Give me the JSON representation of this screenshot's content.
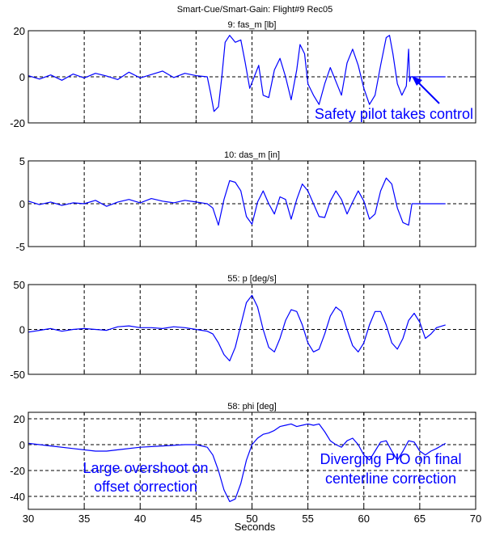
{
  "figure": {
    "suptitle": "Smart-Cue/Smart-Gain: Flight#9 Rec05",
    "xlabel": "Seconds"
  },
  "chart_data": [
    {
      "type": "line",
      "title": "9: fas_m [lb]",
      "xlim": [
        30,
        70
      ],
      "ylim": [
        -20,
        20
      ],
      "yticks": [
        -20,
        0,
        20
      ],
      "xticks": [
        30,
        35,
        40,
        45,
        50,
        55,
        60,
        65,
        70
      ],
      "show_xticklabels": false,
      "grid": true,
      "series_color": "#0000ff",
      "series": [
        {
          "x": [
            30,
            31,
            32,
            33,
            34,
            35,
            36,
            37,
            38,
            39,
            40,
            41,
            42,
            43,
            44,
            45,
            46,
            46.3,
            46.6,
            47,
            47.3,
            47.6,
            48,
            48.5,
            49,
            49.4,
            49.8,
            50.2,
            50.6,
            51,
            51.5,
            52,
            52.5,
            53,
            53.5,
            54,
            54.3,
            54.7,
            55,
            55.5,
            56,
            56.5,
            57,
            57.5,
            58,
            58.5,
            59,
            59.5,
            60,
            60.5,
            61,
            61.5,
            62,
            62.3,
            62.6,
            63,
            63.4,
            63.8,
            64,
            64.1,
            64.2,
            64.5,
            65,
            66,
            67.3
          ],
          "y": [
            0.5,
            -1,
            0.8,
            -1.5,
            1.2,
            -0.5,
            1.5,
            0.3,
            -1.2,
            2,
            -0.5,
            1,
            2.5,
            -0.3,
            1.5,
            0.5,
            0,
            -7,
            -15,
            -13,
            0,
            15,
            18,
            15,
            16,
            6,
            -5,
            0,
            5,
            -8,
            -9,
            3,
            8,
            0,
            -10,
            3,
            14,
            10,
            -3,
            -8,
            -12,
            -3,
            4,
            -2,
            -8,
            6,
            12,
            5,
            -5,
            -12,
            -8,
            5,
            17,
            18,
            10,
            -3,
            -8,
            -4,
            12,
            -2,
            0,
            0,
            0,
            0,
            0
          ]
        }
      ]
    },
    {
      "type": "line",
      "title": "10: das_m [in]",
      "xlim": [
        30,
        70
      ],
      "ylim": [
        -5,
        5
      ],
      "yticks": [
        -5,
        0,
        5
      ],
      "xticks": [
        30,
        35,
        40,
        45,
        50,
        55,
        60,
        65,
        70
      ],
      "show_xticklabels": false,
      "grid": true,
      "series_color": "#0000ff",
      "series": [
        {
          "x": [
            30,
            31,
            32,
            33,
            34,
            35,
            36,
            37,
            38,
            39,
            40,
            41,
            42,
            43,
            44,
            45,
            46,
            46.5,
            47,
            47.5,
            48,
            48.5,
            49,
            49.5,
            50,
            50.5,
            51,
            51.5,
            52,
            52.5,
            53,
            53.5,
            54,
            54.5,
            55,
            55.5,
            56,
            56.5,
            57,
            57.5,
            58,
            58.5,
            59,
            59.5,
            60,
            60.5,
            61,
            61.5,
            62,
            62.5,
            63,
            63.5,
            64,
            64.3,
            65,
            66,
            67.3
          ],
          "y": [
            0.3,
            -0.1,
            0.2,
            -0.2,
            0.1,
            0,
            0.4,
            -0.3,
            0.2,
            0.5,
            0.1,
            0.6,
            0.3,
            0.1,
            0.4,
            0.2,
            0,
            -0.5,
            -2.5,
            0.5,
            2.7,
            2.5,
            1.5,
            -1.5,
            -2.4,
            0.2,
            1.5,
            0,
            -1.2,
            0.8,
            0.5,
            -1.8,
            0.5,
            2.3,
            1.5,
            0,
            -1.5,
            -1.6,
            0.3,
            1.5,
            0.5,
            -1.2,
            0.2,
            1.5,
            0.3,
            -1.8,
            -1.2,
            1.5,
            3,
            2.3,
            -0.5,
            -2.2,
            -2.5,
            0,
            0,
            0,
            0
          ]
        }
      ]
    },
    {
      "type": "line",
      "title": "55: p [deg/s]",
      "xlim": [
        30,
        70
      ],
      "ylim": [
        -50,
        50
      ],
      "yticks": [
        -50,
        0,
        50
      ],
      "xticks": [
        30,
        35,
        40,
        45,
        50,
        55,
        60,
        65,
        70
      ],
      "show_xticklabels": false,
      "grid": true,
      "series_color": "#0000ff",
      "series": [
        {
          "x": [
            30,
            31,
            32,
            33,
            34,
            35,
            36,
            37,
            38,
            39,
            40,
            41,
            42,
            43,
            44,
            45,
            46,
            46.5,
            47,
            47.5,
            48,
            48.5,
            49,
            49.5,
            50,
            50.5,
            51,
            51.5,
            52,
            52.5,
            53,
            53.5,
            54,
            54.5,
            55,
            55.5,
            56,
            56.5,
            57,
            57.5,
            58,
            58.5,
            59,
            59.5,
            60,
            60.5,
            61,
            61.5,
            62,
            62.5,
            63,
            63.5,
            64,
            64.5,
            65,
            65.5,
            66,
            66.5,
            67.3
          ],
          "y": [
            -3,
            -1,
            1,
            -2,
            0,
            1,
            0,
            -1,
            3,
            4,
            2,
            2,
            1,
            3,
            2,
            0,
            -2,
            -5,
            -15,
            -28,
            -35,
            -20,
            5,
            30,
            38,
            25,
            0,
            -20,
            -25,
            -10,
            10,
            22,
            20,
            5,
            -15,
            -25,
            -22,
            -5,
            15,
            25,
            20,
            0,
            -18,
            -25,
            -15,
            5,
            20,
            20,
            5,
            -15,
            -22,
            -10,
            10,
            18,
            8,
            -10,
            -5,
            2,
            5
          ]
        }
      ]
    },
    {
      "type": "line",
      "title": "58: phi [deg]",
      "xlim": [
        30,
        70
      ],
      "ylim": [
        -50,
        25
      ],
      "yticks": [
        -40,
        -20,
        0,
        20
      ],
      "xticks": [
        30,
        35,
        40,
        45,
        50,
        55,
        60,
        65,
        70
      ],
      "show_xticklabels": true,
      "grid": true,
      "series_color": "#0000ff",
      "series": [
        {
          "x": [
            30,
            32,
            34,
            36,
            37,
            38,
            40,
            42,
            44,
            45,
            46,
            46.5,
            47,
            47.5,
            48,
            48.5,
            49,
            49.5,
            50,
            50.5,
            51,
            51.5,
            52,
            52.5,
            53,
            53.5,
            54,
            54.5,
            55,
            55.5,
            56,
            56.5,
            57,
            57.5,
            58,
            58.5,
            59,
            59.5,
            60,
            60.5,
            61,
            61.5,
            62,
            62.5,
            63,
            63.5,
            64,
            64.5,
            65,
            65.5,
            66,
            66.5,
            67.3
          ],
          "y": [
            1,
            -1,
            -3,
            -5,
            -5,
            -4,
            -2,
            -1,
            0,
            0,
            -2,
            -8,
            -20,
            -35,
            -44,
            -42,
            -30,
            -12,
            0,
            5,
            8,
            9,
            11,
            14,
            15,
            16,
            14,
            15,
            16,
            15,
            16,
            10,
            3,
            0,
            -2,
            3,
            5,
            0,
            -8,
            -12,
            -5,
            2,
            3,
            -5,
            -12,
            -5,
            3,
            2,
            -5,
            -8,
            -5,
            -3,
            1
          ]
        }
      ]
    }
  ],
  "annotations": {
    "safety_pilot": "Safety pilot takes control",
    "large_overshoot_line1": "Large overshoot on",
    "large_overshoot_line2": "offset correction",
    "diverging_pio_line1": "Diverging PIO on final",
    "diverging_pio_line2": "centerline correction"
  }
}
